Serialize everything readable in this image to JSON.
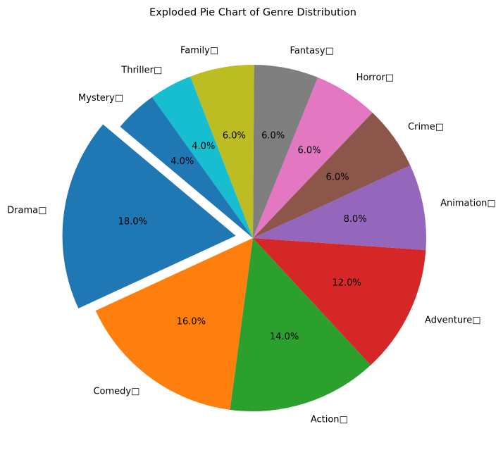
{
  "chart_data": {
    "type": "pie",
    "title": "Exploded Pie Chart of Genre Distribution",
    "start_angle_deg": 140,
    "direction": "counterclockwise",
    "exploded": [
      "Drama"
    ],
    "slices": [
      {
        "label": "Drama□",
        "value": 18.0,
        "pct_label": "18.0%",
        "color": "#1f77b4"
      },
      {
        "label": "Comedy□",
        "value": 16.0,
        "pct_label": "16.0%",
        "color": "#ff7f0e"
      },
      {
        "label": "Action□",
        "value": 14.0,
        "pct_label": "14.0%",
        "color": "#2ca02c"
      },
      {
        "label": "Adventure□",
        "value": 12.0,
        "pct_label": "12.0%",
        "color": "#d62728"
      },
      {
        "label": "Animation□",
        "value": 8.0,
        "pct_label": "8.0%",
        "color": "#9467bd"
      },
      {
        "label": "Crime□",
        "value": 6.0,
        "pct_label": "6.0%",
        "color": "#8c564b"
      },
      {
        "label": "Horror□",
        "value": 6.0,
        "pct_label": "6.0%",
        "color": "#e377c2"
      },
      {
        "label": "Fantasy□",
        "value": 6.0,
        "pct_label": "6.0%",
        "color": "#7f7f7f"
      },
      {
        "label": "Family□",
        "value": 6.0,
        "pct_label": "6.0%",
        "color": "#bcbd22"
      },
      {
        "label": "Thriller□",
        "value": 4.0,
        "pct_label": "4.0%",
        "color": "#17becf"
      },
      {
        "label": "Mystery□",
        "value": 4.0,
        "pct_label": "4.0%",
        "color": "#1f77b4"
      }
    ]
  }
}
